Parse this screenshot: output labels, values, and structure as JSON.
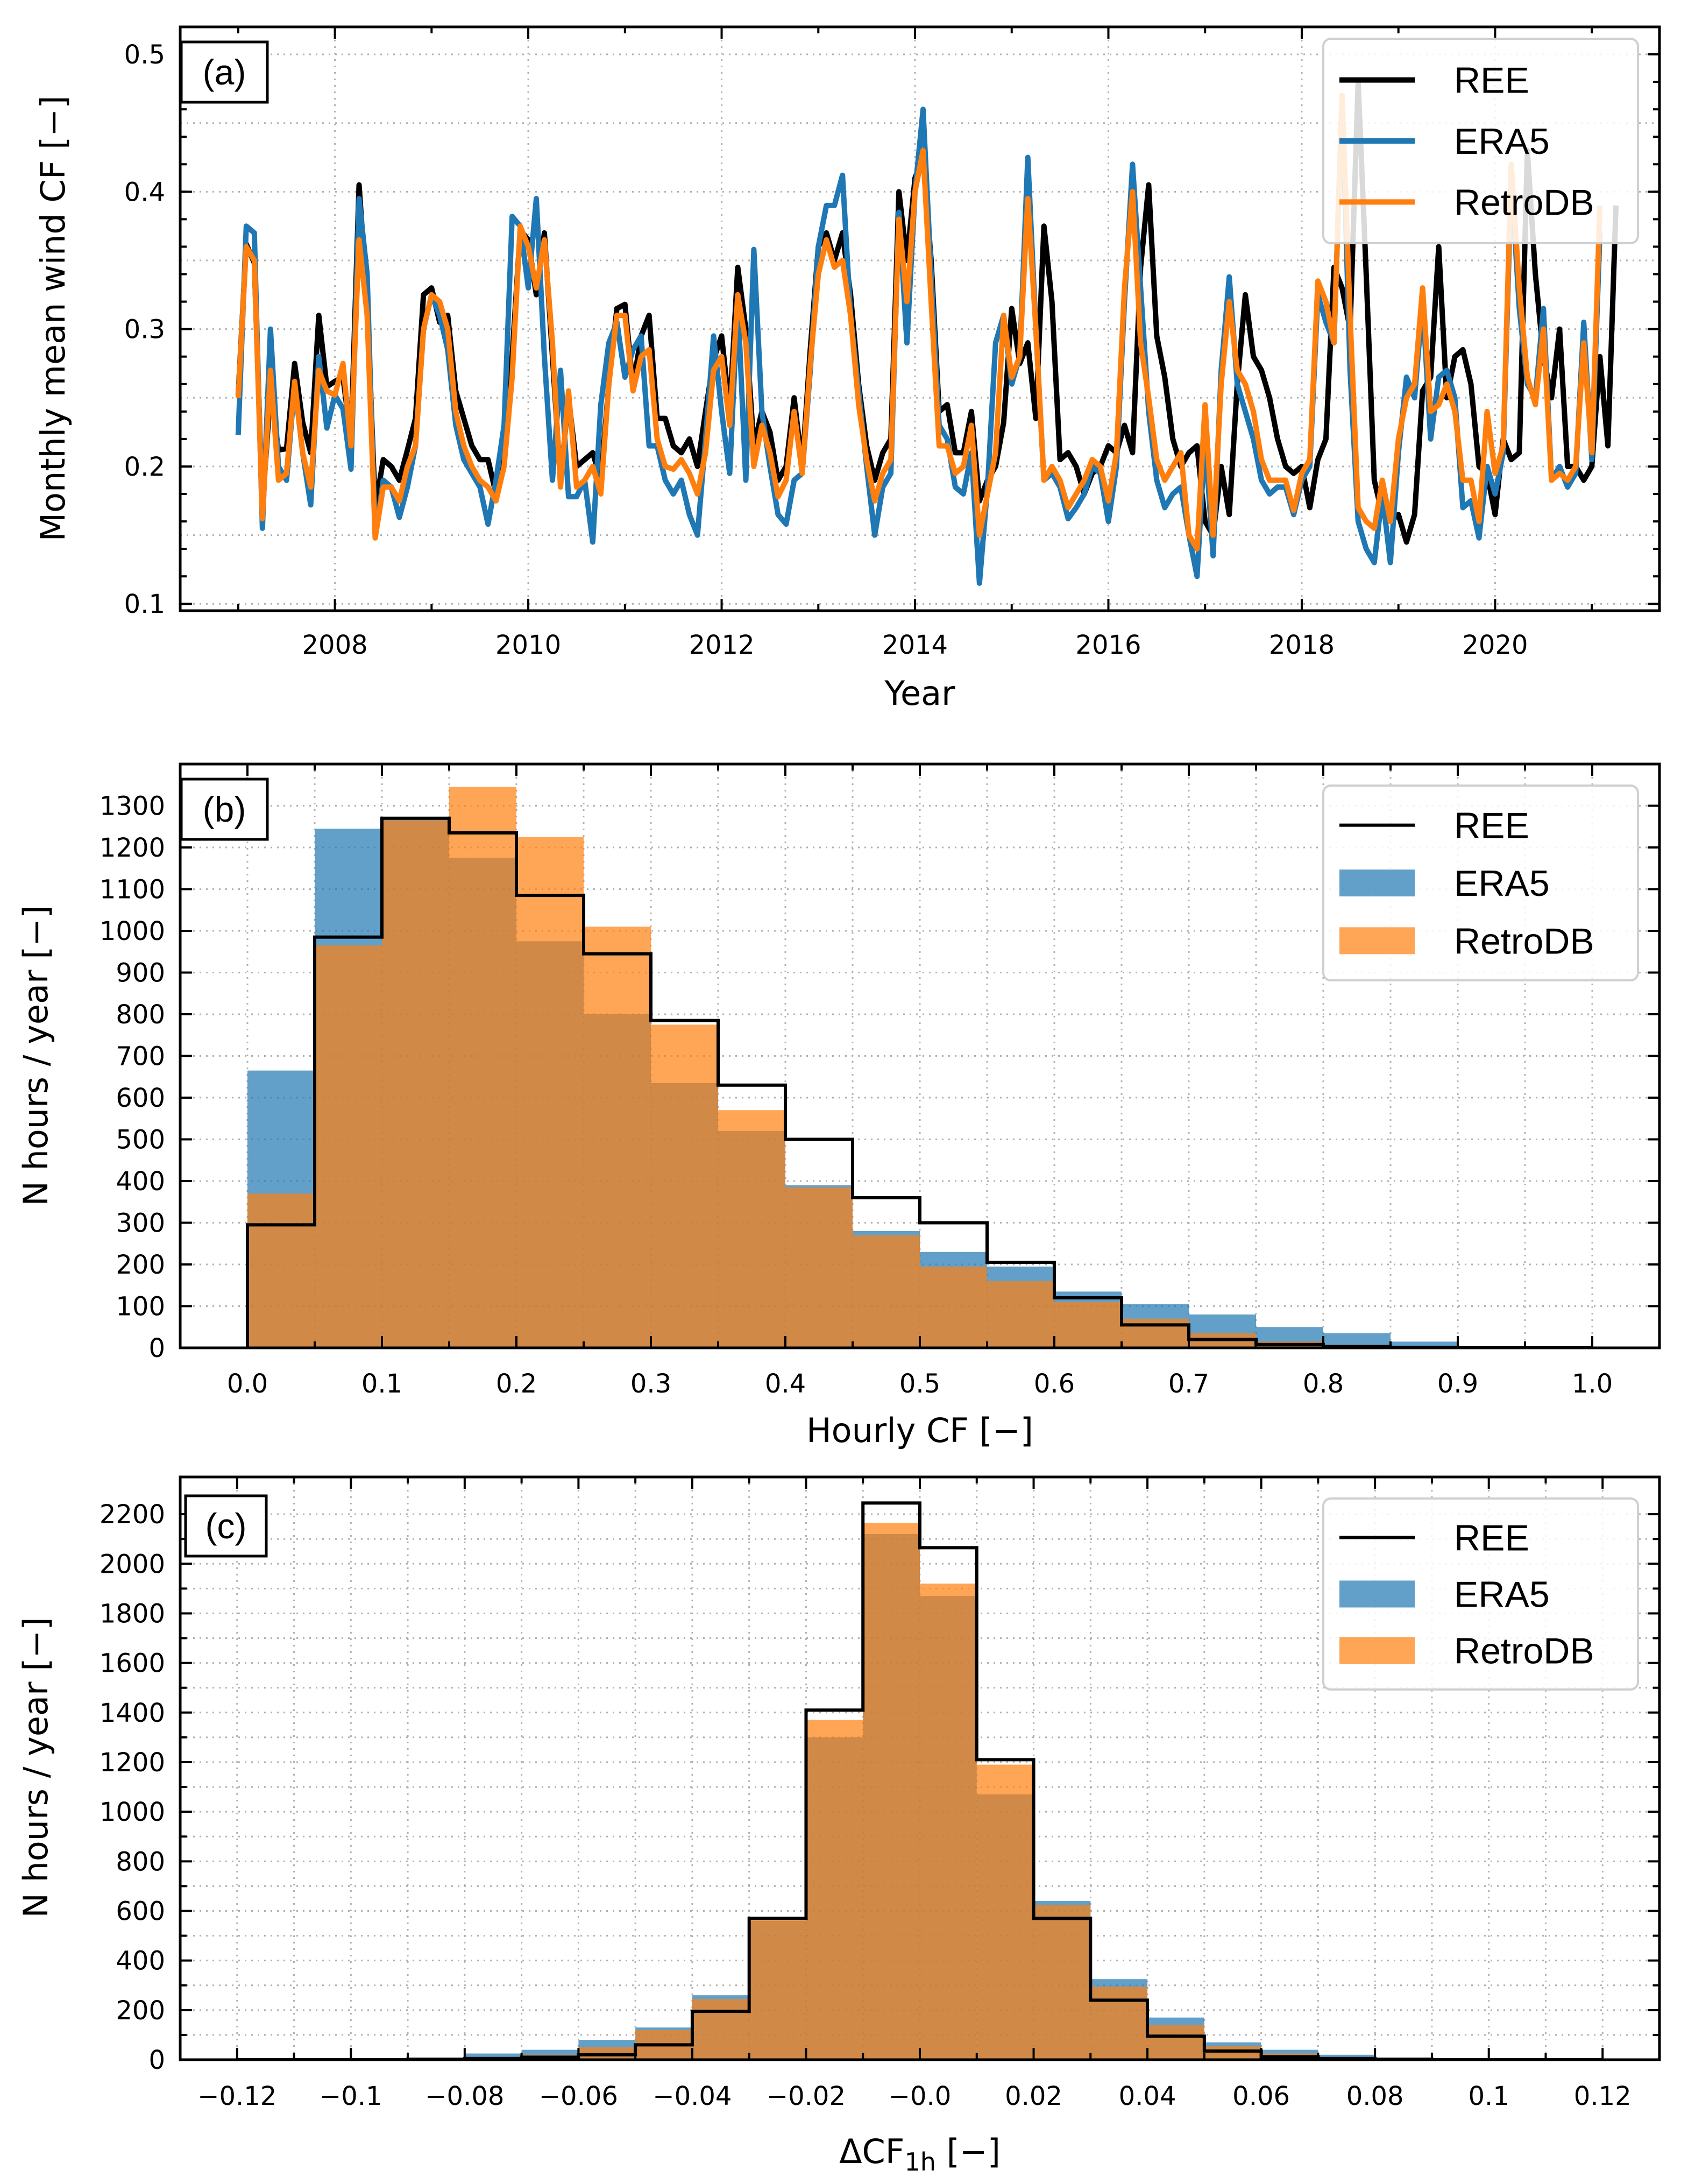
{
  "colors": {
    "ree": "#000000",
    "era5": "#1f77b4",
    "retro": "#ff7f0e",
    "grid": "#b0b0b0"
  },
  "chart_data": [
    {
      "type": "line",
      "panel_label": "(a)",
      "xlabel": "Year",
      "ylabel": "Monthly mean wind CF [−]",
      "xlim": [
        2006.4,
        2021.7
      ],
      "ylim": [
        0.095,
        0.52
      ],
      "x_ticks": [
        2008,
        2010,
        2012,
        2014,
        2016,
        2018,
        2020
      ],
      "x_tick_labels": [
        "2008",
        "2010",
        "2012",
        "2014",
        "2016",
        "2018",
        "2020"
      ],
      "y_ticks": [
        0.1,
        0.2,
        0.3,
        0.4,
        0.5
      ],
      "y_tick_labels": [
        "0.1",
        "0.2",
        "0.3",
        "0.4",
        "0.5"
      ],
      "grid": true,
      "legend": "top-right",
      "x_start": 2007.0,
      "x_step_months": 1,
      "series": [
        {
          "name": "REE",
          "values": [
            0.252,
            0.362,
            0.348,
            0.17,
            0.255,
            0.212,
            0.213,
            0.275,
            0.232,
            0.21,
            0.31,
            0.258,
            0.262,
            0.265,
            0.22,
            0.405,
            0.32,
            0.17,
            0.205,
            0.2,
            0.19,
            0.212,
            0.235,
            0.325,
            0.33,
            0.305,
            0.31,
            0.255,
            0.235,
            0.215,
            0.205,
            0.205,
            0.18,
            0.21,
            0.28,
            0.372,
            0.365,
            0.325,
            0.37,
            0.28,
            0.19,
            0.25,
            0.2,
            0.205,
            0.21,
            0.19,
            0.26,
            0.315,
            0.318,
            0.258,
            0.295,
            0.31,
            0.235,
            0.235,
            0.215,
            0.21,
            0.22,
            0.2,
            0.24,
            0.278,
            0.295,
            0.24,
            0.345,
            0.3,
            0.215,
            0.24,
            0.225,
            0.19,
            0.2,
            0.25,
            0.2,
            0.285,
            0.36,
            0.37,
            0.35,
            0.37,
            0.325,
            0.26,
            0.215,
            0.19,
            0.21,
            0.22,
            0.4,
            0.35,
            0.41,
            0.425,
            0.35,
            0.24,
            0.245,
            0.21,
            0.21,
            0.24,
            0.175,
            0.19,
            0.2,
            0.232,
            0.315,
            0.275,
            0.29,
            0.235,
            0.375,
            0.32,
            0.205,
            0.21,
            0.2,
            0.18,
            0.195,
            0.2,
            0.215,
            0.21,
            0.23,
            0.21,
            0.345,
            0.405,
            0.295,
            0.265,
            0.22,
            0.2,
            0.21,
            0.215,
            0.16,
            0.15,
            0.2,
            0.165,
            0.26,
            0.325,
            0.28,
            0.27,
            0.25,
            0.22,
            0.2,
            0.195,
            0.2,
            0.17,
            0.205,
            0.22,
            0.345,
            0.33,
            0.3,
            0.48,
            0.34,
            0.19,
            0.165,
            0.16,
            0.165,
            0.145,
            0.165,
            0.255,
            0.265,
            0.36,
            0.25,
            0.28,
            0.285,
            0.26,
            0.2,
            0.195,
            0.165,
            0.22,
            0.205,
            0.21,
            0.43,
            0.34,
            0.28,
            0.25,
            0.3,
            0.2,
            0.2,
            0.19,
            0.2,
            0.28,
            0.215,
            0.39
          ]
        },
        {
          "name": "ERA5",
          "values": [
            0.223,
            0.375,
            0.37,
            0.155,
            0.3,
            0.2,
            0.19,
            0.26,
            0.21,
            0.172,
            0.28,
            0.228,
            0.252,
            0.242,
            0.198,
            0.395,
            0.34,
            0.148,
            0.19,
            0.185,
            0.163,
            0.185,
            0.215,
            0.3,
            0.325,
            0.31,
            0.285,
            0.23,
            0.205,
            0.195,
            0.185,
            0.158,
            0.19,
            0.23,
            0.382,
            0.375,
            0.33,
            0.395,
            0.28,
            0.19,
            0.27,
            0.178,
            0.178,
            0.19,
            0.145,
            0.245,
            0.29,
            0.305,
            0.265,
            0.285,
            0.295,
            0.215,
            0.215,
            0.19,
            0.18,
            0.19,
            0.165,
            0.15,
            0.22,
            0.295,
            0.24,
            0.195,
            0.32,
            0.19,
            0.358,
            0.24,
            0.2,
            0.165,
            0.158,
            0.19,
            0.195,
            0.27,
            0.36,
            0.39,
            0.39,
            0.412,
            0.31,
            0.255,
            0.2,
            0.15,
            0.185,
            0.195,
            0.385,
            0.29,
            0.4,
            0.46,
            0.34,
            0.23,
            0.22,
            0.185,
            0.18,
            0.21,
            0.115,
            0.185,
            0.29,
            0.31,
            0.26,
            0.28,
            0.425,
            0.3,
            0.19,
            0.195,
            0.185,
            0.162,
            0.17,
            0.18,
            0.2,
            0.195,
            0.16,
            0.2,
            0.32,
            0.42,
            0.33,
            0.24,
            0.19,
            0.17,
            0.18,
            0.185,
            0.15,
            0.12,
            0.22,
            0.135,
            0.27,
            0.338,
            0.26,
            0.24,
            0.22,
            0.19,
            0.18,
            0.185,
            0.185,
            0.165,
            0.19,
            0.2,
            0.325,
            0.305,
            0.29,
            0.47,
            0.27,
            0.16,
            0.14,
            0.13,
            0.18,
            0.13,
            0.21,
            0.265,
            0.25,
            0.32,
            0.22,
            0.265,
            0.27,
            0.25,
            0.17,
            0.175,
            0.148,
            0.2,
            0.18,
            0.21,
            0.41,
            0.315,
            0.26,
            0.25,
            0.315,
            0.19,
            0.2,
            0.185,
            0.195,
            0.305,
            0.205,
            0.37
          ]
        },
        {
          "name": "RetroDB",
          "values": [
            0.25,
            0.36,
            0.35,
            0.162,
            0.27,
            0.19,
            0.195,
            0.262,
            0.21,
            0.185,
            0.27,
            0.255,
            0.252,
            0.275,
            0.215,
            0.365,
            0.31,
            0.148,
            0.185,
            0.185,
            0.175,
            0.2,
            0.215,
            0.3,
            0.325,
            0.32,
            0.3,
            0.24,
            0.215,
            0.2,
            0.19,
            0.185,
            0.175,
            0.2,
            0.265,
            0.375,
            0.36,
            0.33,
            0.365,
            0.29,
            0.185,
            0.255,
            0.185,
            0.19,
            0.2,
            0.18,
            0.26,
            0.31,
            0.31,
            0.255,
            0.28,
            0.285,
            0.22,
            0.2,
            0.198,
            0.205,
            0.195,
            0.18,
            0.21,
            0.27,
            0.28,
            0.23,
            0.325,
            0.29,
            0.2,
            0.23,
            0.21,
            0.178,
            0.19,
            0.24,
            0.195,
            0.275,
            0.34,
            0.365,
            0.345,
            0.35,
            0.31,
            0.245,
            0.205,
            0.175,
            0.195,
            0.205,
            0.38,
            0.32,
            0.4,
            0.43,
            0.32,
            0.215,
            0.215,
            0.195,
            0.2,
            0.23,
            0.15,
            0.18,
            0.21,
            0.31,
            0.265,
            0.28,
            0.395,
            0.3,
            0.19,
            0.2,
            0.19,
            0.17,
            0.18,
            0.19,
            0.205,
            0.2,
            0.175,
            0.21,
            0.33,
            0.4,
            0.29,
            0.25,
            0.205,
            0.19,
            0.2,
            0.21,
            0.15,
            0.14,
            0.245,
            0.15,
            0.26,
            0.32,
            0.27,
            0.26,
            0.24,
            0.205,
            0.19,
            0.19,
            0.19,
            0.168,
            0.195,
            0.205,
            0.335,
            0.32,
            0.29,
            0.47,
            0.31,
            0.17,
            0.16,
            0.155,
            0.19,
            0.16,
            0.22,
            0.25,
            0.26,
            0.33,
            0.24,
            0.245,
            0.26,
            0.24,
            0.19,
            0.19,
            0.16,
            0.24,
            0.195,
            0.215,
            0.42,
            0.33,
            0.265,
            0.245,
            0.3,
            0.19,
            0.195,
            0.19,
            0.2,
            0.29,
            0.21,
            0.39
          ]
        }
      ]
    },
    {
      "type": "bar",
      "histogram": true,
      "panel_label": "(b)",
      "xlabel": "Hourly CF [−]",
      "ylabel": "N hours / year [−]",
      "xlim": [
        -0.05,
        1.05
      ],
      "ylim": [
        0,
        1400
      ],
      "x_ticks": [
        0.0,
        0.1,
        0.2,
        0.3,
        0.4,
        0.5,
        0.6,
        0.7,
        0.8,
        0.9,
        1.0
      ],
      "x_tick_labels": [
        "0.0",
        "0.1",
        "0.2",
        "0.3",
        "0.4",
        "0.5",
        "0.6",
        "0.7",
        "0.8",
        "0.9",
        "1.0"
      ],
      "y_ticks": [
        0,
        100,
        200,
        300,
        400,
        500,
        600,
        700,
        800,
        900,
        1000,
        1100,
        1200,
        1300
      ],
      "y_tick_labels": [
        "0",
        "100",
        "200",
        "300",
        "400",
        "500",
        "600",
        "700",
        "800",
        "900",
        "1000",
        "1100",
        "1200",
        "1300"
      ],
      "grid": true,
      "legend": "top-right",
      "bin_edges": [
        0.0,
        0.05,
        0.1,
        0.15,
        0.2,
        0.25,
        0.3,
        0.35,
        0.4,
        0.45,
        0.5,
        0.55,
        0.6,
        0.65,
        0.7,
        0.75,
        0.8,
        0.85,
        0.9,
        0.95,
        1.0
      ],
      "series": [
        {
          "name": "REE",
          "values": [
            295,
            985,
            1270,
            1235,
            1085,
            945,
            785,
            630,
            500,
            360,
            300,
            205,
            120,
            55,
            20,
            8,
            3,
            1,
            0,
            0
          ]
        },
        {
          "name": "ERA5",
          "values": [
            665,
            1245,
            1270,
            1175,
            975,
            800,
            635,
            520,
            390,
            280,
            230,
            195,
            135,
            105,
            80,
            50,
            35,
            15,
            3,
            0
          ]
        },
        {
          "name": "RetroDB",
          "values": [
            370,
            965,
            1265,
            1345,
            1225,
            1010,
            775,
            570,
            385,
            270,
            195,
            160,
            110,
            70,
            35,
            15,
            5,
            1,
            0,
            0
          ]
        }
      ]
    },
    {
      "type": "bar",
      "histogram": true,
      "panel_label": "(c)",
      "xlabel": "ΔCF",
      "xlabel_sub": "1h",
      "xlabel_unit": " [−]",
      "ylabel": "N hours / year [−]",
      "xlim": [
        -0.13,
        0.13
      ],
      "ylim": [
        0,
        2350
      ],
      "x_ticks": [
        -0.12,
        -0.1,
        -0.08,
        -0.06,
        -0.04,
        -0.02,
        0.0,
        0.02,
        0.04,
        0.06,
        0.08,
        0.1,
        0.12
      ],
      "x_tick_labels": [
        "−0.12",
        "−0.1",
        "−0.08",
        "−0.06",
        "−0.04",
        "−0.02",
        "−0.0",
        "0.02",
        "0.04",
        "0.06",
        "0.08",
        "0.1",
        "0.12"
      ],
      "y_ticks": [
        0,
        200,
        400,
        600,
        800,
        1000,
        1200,
        1400,
        1600,
        1800,
        2000,
        2200
      ],
      "y_tick_labels": [
        "0",
        "200",
        "400",
        "600",
        "800",
        "1000",
        "1200",
        "1400",
        "1600",
        "1800",
        "2000",
        "2200"
      ],
      "grid": true,
      "legend": "top-right",
      "bin_edges": [
        -0.12,
        -0.11,
        -0.1,
        -0.09,
        -0.08,
        -0.07,
        -0.06,
        -0.05,
        -0.04,
        -0.03,
        -0.02,
        -0.01,
        0.0,
        0.01,
        0.02,
        0.03,
        0.04,
        0.05,
        0.06,
        0.07,
        0.08,
        0.09,
        0.1,
        0.11,
        0.12
      ],
      "series": [
        {
          "name": "REE",
          "values": [
            0,
            0,
            0,
            2,
            5,
            10,
            20,
            60,
            195,
            570,
            1410,
            2245,
            2065,
            1210,
            570,
            240,
            95,
            35,
            12,
            5,
            2,
            0,
            0,
            0
          ]
        },
        {
          "name": "ERA5",
          "values": [
            0,
            0,
            2,
            5,
            25,
            40,
            80,
            130,
            260,
            560,
            1300,
            2120,
            1870,
            1070,
            640,
            325,
            170,
            70,
            40,
            20,
            8,
            3,
            0,
            0
          ]
        },
        {
          "name": "RetroDB",
          "values": [
            0,
            0,
            0,
            3,
            10,
            20,
            50,
            120,
            245,
            570,
            1370,
            2165,
            1920,
            1190,
            625,
            295,
            140,
            55,
            25,
            10,
            4,
            2,
            0,
            0
          ]
        }
      ]
    }
  ]
}
